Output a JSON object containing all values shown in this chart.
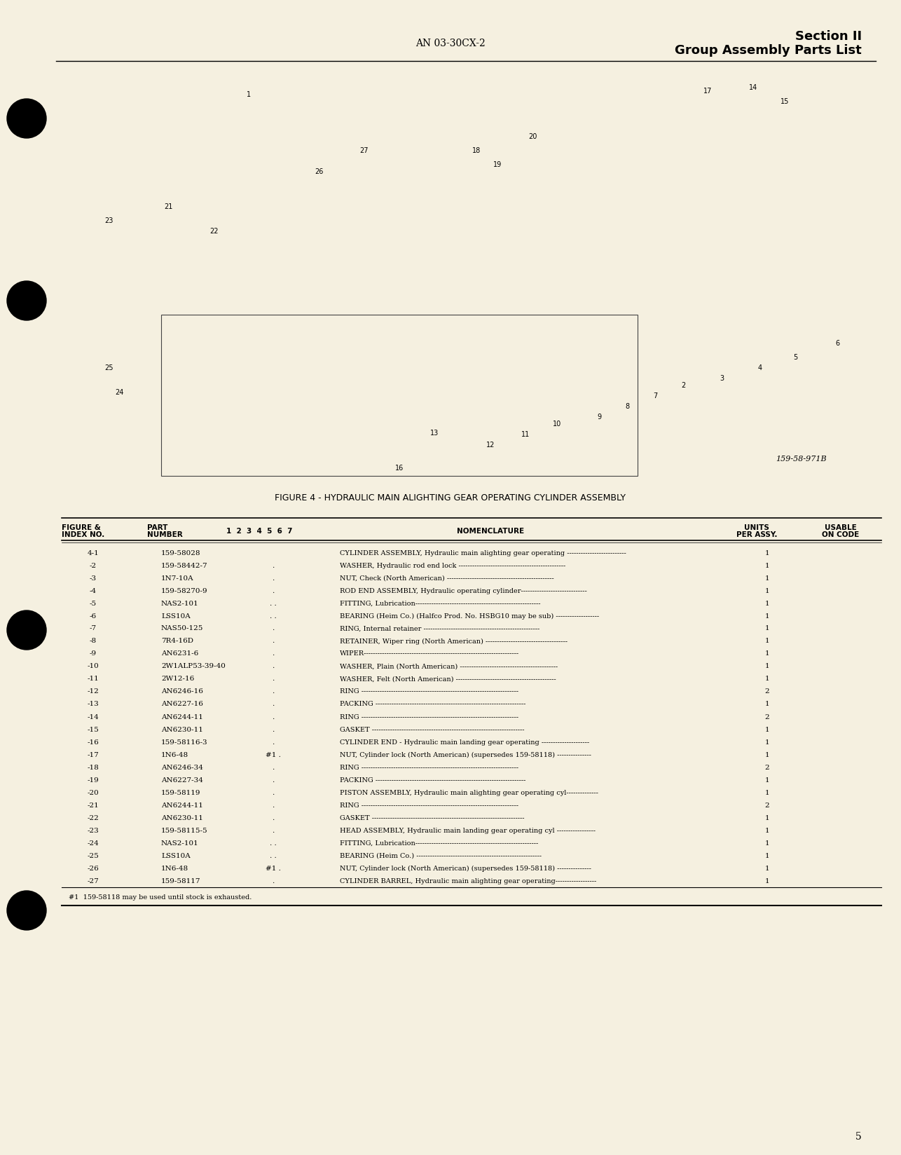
{
  "bg_color": "#f5f0e0",
  "page_color": "#f5f0e8",
  "header_center": "AN 03-30CX-2",
  "header_right_line1": "Section II",
  "header_right_line2": "Group Assembly Parts List",
  "figure_caption": "FIGURE 4 - HYDRAULIC MAIN ALIGHTING GEAR OPERATING CYLINDER ASSEMBLY",
  "figure_ref": "159-58-971B",
  "page_number": "5",
  "table_headers": [
    "FIGURE &\nINDEX NO.",
    "PART\nNUMBER",
    "1  2  3  4  5  6  7",
    "NOMENCLATURE",
    "UNITS\nPER ASSY.",
    "USABLE\nON CODE"
  ],
  "table_rows": [
    [
      "4-1",
      "159-58028",
      "",
      "CYLINDER ASSEMBLY, Hydraulic main alighting gear operating --------------------------",
      "1",
      ""
    ],
    [
      "-2",
      "159-58442-7",
      ".",
      "WASHER, Hydraulic rod end lock -----------------------------------------------",
      "1",
      ""
    ],
    [
      "-3",
      "1N7-10A",
      ".",
      "NUT, Check (North American) -----------------------------------------------",
      "1",
      ""
    ],
    [
      "-4",
      "159-58270-9",
      ".",
      "ROD END ASSEMBLY, Hydraulic operating cylinder-----------------------------",
      "1",
      ""
    ],
    [
      "-5",
      "NAS2-101",
      ". .",
      "FITTING, Lubrication-------------------------------------------------------",
      "1",
      ""
    ],
    [
      "-6",
      "LSS10A",
      ". .",
      "BEARING (Heim Co.) (Halfco Prod. No. HSBG10 may be sub) -------------------",
      "1",
      ""
    ],
    [
      "-7",
      "NAS50-125",
      ".",
      "RING, Internal retainer ---------------------------------------------------",
      "1",
      ""
    ],
    [
      "-8",
      "7R4-16D",
      ".",
      "RETAINER, Wiper ring (North American) ------------------------------------",
      "1",
      ""
    ],
    [
      "-9",
      "AN6231-6",
      ".",
      "WIPER--------------------------------------------------------------------",
      "1",
      ""
    ],
    [
      "-10",
      "2W1ALP53-39-40",
      ".",
      "WASHER, Plain (North American) -------------------------------------------",
      "1",
      ""
    ],
    [
      "-11",
      "2W12-16",
      ".",
      "WASHER, Felt (North American) --------------------------------------------",
      "1",
      ""
    ],
    [
      "-12",
      "AN6246-16",
      ".",
      "RING ---------------------------------------------------------------------",
      "2",
      ""
    ],
    [
      "-13",
      "AN6227-16",
      ".",
      "PACKING ------------------------------------------------------------------",
      "1",
      ""
    ],
    [
      "-14",
      "AN6244-11",
      ".",
      "RING ---------------------------------------------------------------------",
      "2",
      ""
    ],
    [
      "-15",
      "AN6230-11",
      ".",
      "GASKET -------------------------------------------------------------------",
      "1",
      ""
    ],
    [
      "-16",
      "159-58116-3",
      ".",
      "CYLINDER END - Hydraulic main landing gear operating ---------------------",
      "1",
      ""
    ],
    [
      "-17",
      "1N6-48",
      "#1 .",
      "NUT, Cylinder lock (North American) (supersedes 159-58118) ---------------",
      "1",
      ""
    ],
    [
      "-18",
      "AN6246-34",
      ".",
      "RING ---------------------------------------------------------------------",
      "2",
      ""
    ],
    [
      "-19",
      "AN6227-34",
      ".",
      "PACKING ------------------------------------------------------------------",
      "1",
      ""
    ],
    [
      "-20",
      "159-58119",
      ".",
      "PISTON ASSEMBLY, Hydraulic main alighting gear operating cyl--------------",
      "1",
      ""
    ],
    [
      "-21",
      "AN6244-11",
      ".",
      "RING ---------------------------------------------------------------------",
      "2",
      ""
    ],
    [
      "-22",
      "AN6230-11",
      ".",
      "GASKET -------------------------------------------------------------------",
      "1",
      ""
    ],
    [
      "-23",
      "159-58115-5",
      ".",
      "HEAD ASSEMBLY, Hydraulic main landing gear operating cyl -----------------",
      "1",
      ""
    ],
    [
      "-24",
      "NAS2-101",
      ". .",
      "FITTING, Lubrication------------------------------------------------------",
      "1",
      ""
    ],
    [
      "-25",
      "LSS10A",
      ". .",
      "BEARING (Heim Co.) -------------------------------------------------------",
      "1",
      ""
    ],
    [
      "-26",
      "1N6-48",
      "#1 .",
      "NUT, Cylinder lock (North American) (supersedes 159-58118) ---------------",
      "1",
      ""
    ],
    [
      "-27",
      "159-58117",
      ".",
      "CYLINDER BARREL, Hydraulic main alighting gear operating------------------",
      "1",
      ""
    ]
  ],
  "footnote": "#1  159-58118 may be used until stock is exhausted."
}
